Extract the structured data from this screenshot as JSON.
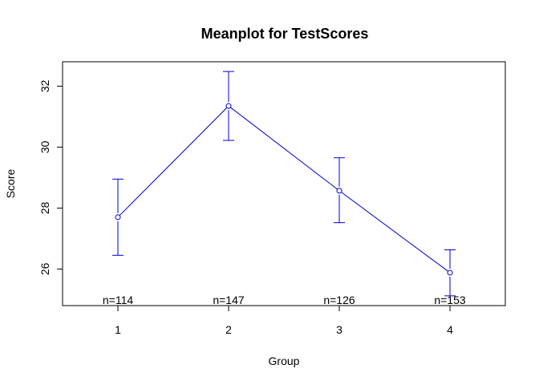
{
  "chart_data": {
    "type": "line",
    "title": "Meanplot for TestScores",
    "xlabel": "Group",
    "ylabel": "Score",
    "categories": [
      "1",
      "2",
      "3",
      "4"
    ],
    "x": [
      1,
      2,
      3,
      4
    ],
    "means": [
      27.7,
      31.35,
      28.57,
      25.88
    ],
    "ci_upper": [
      28.95,
      32.48,
      29.65,
      26.63
    ],
    "ci_lower": [
      26.45,
      30.22,
      27.52,
      25.12
    ],
    "n_labels": [
      "n=114",
      "n=147",
      "n=126",
      "n=153"
    ],
    "xlim": [
      0.5,
      4.5
    ],
    "ylim": [
      24.8,
      32.8
    ],
    "yticks": [
      26,
      28,
      30,
      32
    ],
    "ytick_labels": [
      "26",
      "28",
      "30",
      "32"
    ],
    "grid": false,
    "colors": {
      "series": "#0000cc",
      "axes": "#000000"
    }
  }
}
